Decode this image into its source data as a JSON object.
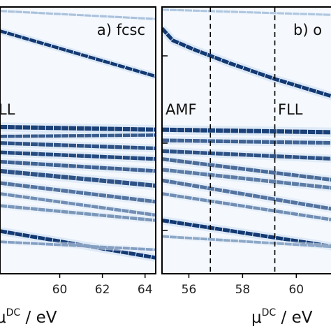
{
  "chart_data": [
    {
      "type": "heatmap",
      "panel_label": "a) fcsc",
      "region_labels": [
        "LL"
      ],
      "x_ticks": [
        "60",
        "62",
        "64"
      ],
      "xlabel": "μDC / eV",
      "xlim": [
        57.2,
        64.5
      ],
      "ylim": [
        0,
        1
      ],
      "colormap": "Blues",
      "bands": [
        {
          "points": [
            [
              57.2,
              0.91
            ],
            [
              64.5,
              0.74
            ]
          ],
          "width": 0.012,
          "intensity": 0.95
        },
        {
          "points": [
            [
              57.2,
              0.985
            ],
            [
              64.5,
              0.955
            ]
          ],
          "width": 0.008,
          "intensity": 0.15
        },
        {
          "points": [
            [
              57.2,
              0.55
            ],
            [
              64.5,
              0.54
            ]
          ],
          "width": 0.016,
          "intensity": 0.9
        },
        {
          "points": [
            [
              57.2,
              0.515
            ],
            [
              64.5,
              0.52
            ]
          ],
          "width": 0.012,
          "intensity": 0.75
        },
        {
          "points": [
            [
              57.2,
              0.49
            ],
            [
              64.5,
              0.47
            ]
          ],
          "width": 0.014,
          "intensity": 0.8
        },
        {
          "points": [
            [
              57.2,
              0.455
            ],
            [
              64.5,
              0.43
            ]
          ],
          "width": 0.014,
          "intensity": 0.85
        },
        {
          "points": [
            [
              57.2,
              0.42
            ],
            [
              64.5,
              0.385
            ]
          ],
          "width": 0.014,
          "intensity": 0.7
        },
        {
          "points": [
            [
              57.2,
              0.385
            ],
            [
              64.5,
              0.33
            ]
          ],
          "width": 0.016,
          "intensity": 0.8
        },
        {
          "points": [
            [
              57.2,
              0.34
            ],
            [
              64.5,
              0.27
            ]
          ],
          "width": 0.014,
          "intensity": 0.6
        },
        {
          "points": [
            [
              57.2,
              0.3
            ],
            [
              64.5,
              0.22
            ]
          ],
          "width": 0.012,
          "intensity": 0.45
        },
        {
          "points": [
            [
              57.2,
              0.255
            ],
            [
              64.5,
              0.2
            ]
          ],
          "width": 0.012,
          "intensity": 0.4
        },
        {
          "points": [
            [
              57.2,
              0.16
            ],
            [
              64.5,
              0.06
            ]
          ],
          "width": 0.014,
          "intensity": 0.95
        },
        {
          "points": [
            [
              57.2,
              0.12
            ],
            [
              64.5,
              0.09
            ]
          ],
          "width": 0.01,
          "intensity": 0.35
        }
      ]
    },
    {
      "type": "heatmap",
      "panel_label": "b) o",
      "region_labels": [
        "AMF",
        "FLL"
      ],
      "x_ticks": [
        "56",
        "58",
        "60"
      ],
      "xlabel": "μDC / eV",
      "xlim": [
        55.0,
        61.5
      ],
      "ylim": [
        0,
        1
      ],
      "colormap": "Blues",
      "dashed_lines_x": [
        56.8,
        59.2
      ],
      "bands": [
        {
          "points": [
            [
              55.0,
              0.92
            ],
            [
              55.4,
              0.875
            ],
            [
              56.2,
              0.84
            ],
            [
              57.5,
              0.79
            ],
            [
              59.2,
              0.73
            ],
            [
              61.5,
              0.66
            ]
          ],
          "width": 0.014,
          "intensity": 0.95
        },
        {
          "points": [
            [
              55.0,
              0.99
            ],
            [
              61.5,
              0.97
            ]
          ],
          "width": 0.008,
          "intensity": 0.12
        },
        {
          "points": [
            [
              55.0,
              0.54
            ],
            [
              61.5,
              0.53
            ]
          ],
          "width": 0.016,
          "intensity": 0.9
        },
        {
          "points": [
            [
              55.0,
              0.5
            ],
            [
              61.5,
              0.49
            ]
          ],
          "width": 0.014,
          "intensity": 0.7
        },
        {
          "points": [
            [
              55.0,
              0.46
            ],
            [
              61.5,
              0.43
            ]
          ],
          "width": 0.014,
          "intensity": 0.8
        },
        {
          "points": [
            [
              55.0,
              0.43
            ],
            [
              61.5,
              0.35
            ]
          ],
          "width": 0.014,
          "intensity": 0.65
        },
        {
          "points": [
            [
              55.0,
              0.39
            ],
            [
              61.5,
              0.32
            ]
          ],
          "width": 0.014,
          "intensity": 0.55
        },
        {
          "points": [
            [
              55.0,
              0.35
            ],
            [
              61.5,
              0.24
            ]
          ],
          "width": 0.014,
          "intensity": 0.6
        },
        {
          "points": [
            [
              55.0,
              0.3
            ],
            [
              61.5,
              0.2
            ]
          ],
          "width": 0.012,
          "intensity": 0.45
        },
        {
          "points": [
            [
              55.0,
              0.2
            ],
            [
              61.5,
              0.1
            ]
          ],
          "width": 0.014,
          "intensity": 0.95
        },
        {
          "points": [
            [
              55.0,
              0.14
            ],
            [
              61.5,
              0.1
            ]
          ],
          "width": 0.01,
          "intensity": 0.3
        }
      ]
    }
  ],
  "colors": {
    "background": "#f5f9fe",
    "band_light": "#c6dbef",
    "band_dark": "#08306b",
    "frame": "#000000"
  }
}
